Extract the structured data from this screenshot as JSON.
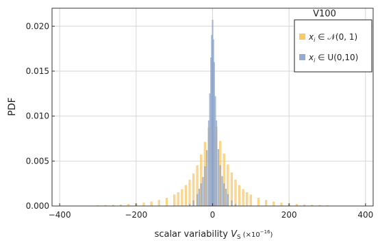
{
  "chart_data": {
    "type": "histogram",
    "title": "",
    "annotation": "V100",
    "xlabel": {
      "text": "scalar variability",
      "symbol": "V",
      "subscript": "S",
      "scale_prefix": "(×10",
      "scale_exp": "−16",
      "scale_suffix": ")"
    },
    "ylabel": "PDF",
    "xlim": [
      -420,
      420
    ],
    "ylim": [
      0,
      0.022
    ],
    "grid": true,
    "legend_position": "top-right",
    "x_ticks": [
      {
        "value": -400,
        "label": "−400"
      },
      {
        "value": -200,
        "label": "−200"
      },
      {
        "value": 0,
        "label": "0"
      },
      {
        "value": 200,
        "label": "200"
      },
      {
        "value": 400,
        "label": "400"
      }
    ],
    "y_ticks": [
      {
        "value": 0.0,
        "label": "0.000"
      },
      {
        "value": 0.005,
        "label": "0.005"
      },
      {
        "value": 0.01,
        "label": "0.010"
      },
      {
        "value": 0.015,
        "label": "0.015"
      },
      {
        "value": 0.02,
        "label": "0.020"
      }
    ],
    "series": [
      {
        "name_var": "x",
        "name_sub": "i",
        "name_dist": " ∈ 𝒩(0, 1)",
        "color": "#f8c25a",
        "opacity": 0.65,
        "bin_width": 5,
        "bins": [
          {
            "x": -300,
            "y": 6e-05
          },
          {
            "x": -280,
            "y": 8e-05
          },
          {
            "x": -260,
            "y": 0.00011
          },
          {
            "x": -240,
            "y": 0.00015
          },
          {
            "x": -220,
            "y": 0.0002
          },
          {
            "x": -200,
            "y": 0.00026
          },
          {
            "x": -180,
            "y": 0.00035
          },
          {
            "x": -160,
            "y": 0.00047
          },
          {
            "x": -140,
            "y": 0.00064
          },
          {
            "x": -120,
            "y": 0.00088
          },
          {
            "x": -100,
            "y": 0.00125
          },
          {
            "x": -90,
            "y": 0.0015
          },
          {
            "x": -80,
            "y": 0.00185
          },
          {
            "x": -70,
            "y": 0.0023
          },
          {
            "x": -60,
            "y": 0.0029
          },
          {
            "x": -50,
            "y": 0.0036
          },
          {
            "x": -40,
            "y": 0.0045
          },
          {
            "x": -30,
            "y": 0.0057
          },
          {
            "x": -20,
            "y": 0.0071
          },
          {
            "x": -10,
            "y": 0.0087
          },
          {
            "x": 0,
            "y": 0.0099
          },
          {
            "x": 10,
            "y": 0.0088
          },
          {
            "x": 20,
            "y": 0.0072
          },
          {
            "x": 30,
            "y": 0.0058
          },
          {
            "x": 40,
            "y": 0.0046
          },
          {
            "x": 50,
            "y": 0.0037
          },
          {
            "x": 60,
            "y": 0.0029
          },
          {
            "x": 70,
            "y": 0.0023
          },
          {
            "x": 80,
            "y": 0.00185
          },
          {
            "x": 90,
            "y": 0.0015
          },
          {
            "x": 100,
            "y": 0.00125
          },
          {
            "x": 120,
            "y": 0.00088
          },
          {
            "x": 140,
            "y": 0.00064
          },
          {
            "x": 160,
            "y": 0.00047
          },
          {
            "x": 180,
            "y": 0.00035
          },
          {
            "x": 200,
            "y": 0.00026
          },
          {
            "x": 220,
            "y": 0.0002
          },
          {
            "x": 240,
            "y": 0.00015
          },
          {
            "x": 260,
            "y": 0.00011
          },
          {
            "x": 280,
            "y": 8e-05
          },
          {
            "x": 300,
            "y": 6e-05
          }
        ]
      },
      {
        "name_var": "x",
        "name_sub": "i",
        "name_dist": " ∈ U(0,10)",
        "color": "#8aa3cc",
        "opacity": 0.7,
        "bin_width": 3,
        "bins": [
          {
            "x": -70,
            "y": 0.0
          },
          {
            "x": -60,
            "y": 0.0002
          },
          {
            "x": -50,
            "y": 0.0006
          },
          {
            "x": -40,
            "y": 0.0013
          },
          {
            "x": -35,
            "y": 0.0019
          },
          {
            "x": -30,
            "y": 0.0025
          },
          {
            "x": -25,
            "y": 0.0032
          },
          {
            "x": -20,
            "y": 0.0044
          },
          {
            "x": -15,
            "y": 0.0062
          },
          {
            "x": -10,
            "y": 0.0095
          },
          {
            "x": -7,
            "y": 0.0125
          },
          {
            "x": -4,
            "y": 0.0165
          },
          {
            "x": -2,
            "y": 0.019
          },
          {
            "x": 0,
            "y": 0.0207
          },
          {
            "x": 2,
            "y": 0.0185
          },
          {
            "x": 4,
            "y": 0.016
          },
          {
            "x": 7,
            "y": 0.0122
          },
          {
            "x": 10,
            "y": 0.0095
          },
          {
            "x": 15,
            "y": 0.0063
          },
          {
            "x": 20,
            "y": 0.0045
          },
          {
            "x": 25,
            "y": 0.0033
          },
          {
            "x": 30,
            "y": 0.0025
          },
          {
            "x": 35,
            "y": 0.0019
          },
          {
            "x": 40,
            "y": 0.0013
          },
          {
            "x": 50,
            "y": 0.0006
          },
          {
            "x": 60,
            "y": 0.0002
          },
          {
            "x": 70,
            "y": 0.0
          }
        ]
      }
    ]
  }
}
